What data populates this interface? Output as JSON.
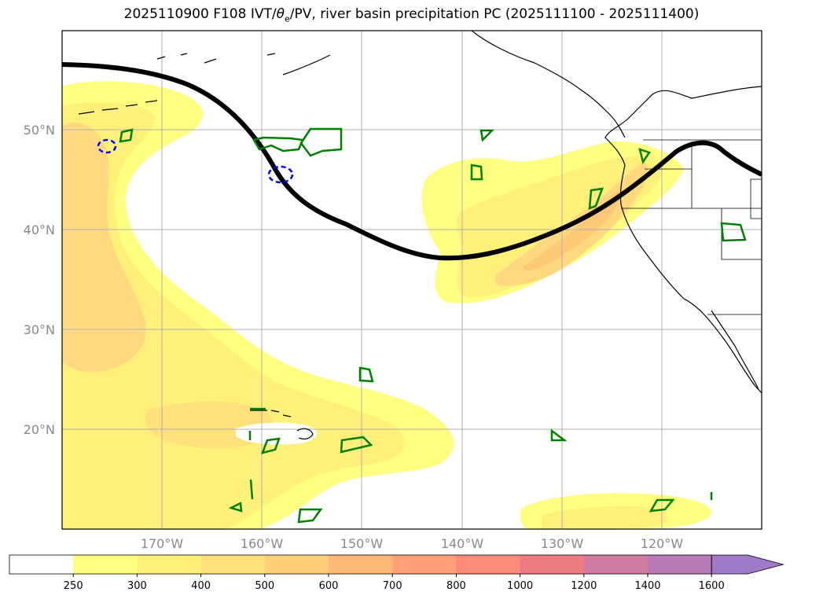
{
  "title": {
    "prefix": "2025110900 F108 IVT/",
    "theta": "θ",
    "theta_sub": "e",
    "suffix": "/PV, river basin precipitation PC (2025111100 - 2025111400)"
  },
  "map": {
    "lat_labels": [
      "50°N",
      "40°N",
      "30°N",
      "20°N"
    ],
    "lon_labels": [
      "170°W",
      "160°W",
      "150°W",
      "140°W",
      "130°W",
      "120°W"
    ]
  },
  "colorbar": {
    "labels": [
      "250",
      "300",
      "400",
      "500",
      "600",
      "700",
      "800",
      "1000",
      "1200",
      "1400",
      "1600"
    ],
    "colors": [
      "#ffffff",
      "#ffff80",
      "#fff07a",
      "#ffe07a",
      "#ffd07a",
      "#ffb878",
      "#ffa078",
      "#ff8a7a",
      "#f07a82",
      "#d07aa0",
      "#b97ab8",
      "#a07ac8"
    ]
  },
  "colors": {
    "ivt_250": "#ffff80",
    "ivt_300": "#fff07a",
    "ivt_400": "#ffd880",
    "pv_line": "#000000",
    "precip_outline": "#008000",
    "low_outline": "#0000ff"
  }
}
